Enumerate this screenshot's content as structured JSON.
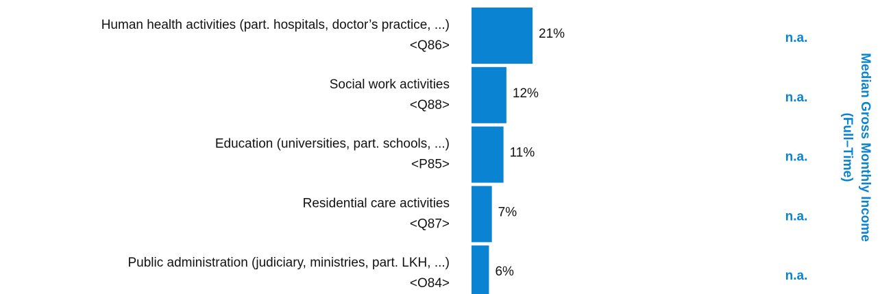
{
  "chart_data": {
    "type": "bar",
    "categories": [
      "Human health activities (part. hospitals, doctor’s practice, ...)",
      "Social work activities",
      "Education (universities, part. schools, ...)",
      "Residential care activities",
      "Public administration (judiciary, ministries, part. LKH, ...)"
    ],
    "codes": [
      "<Q86>",
      "<Q88>",
      "<P85>",
      "<Q87>",
      "<O84>"
    ],
    "values": [
      21,
      12,
      11,
      7,
      6
    ],
    "value_labels": [
      "21%",
      "12%",
      "11%",
      "7%",
      "6%"
    ],
    "color": "#0a84d2",
    "xlim": [
      0,
      100
    ],
    "median_income": [
      "n.a.",
      "n.a.",
      "n.a.",
      "n.a.",
      "n.a."
    ],
    "median_axis_label": [
      "Median Gross Monthly Income",
      "(Full–Time)"
    ]
  }
}
